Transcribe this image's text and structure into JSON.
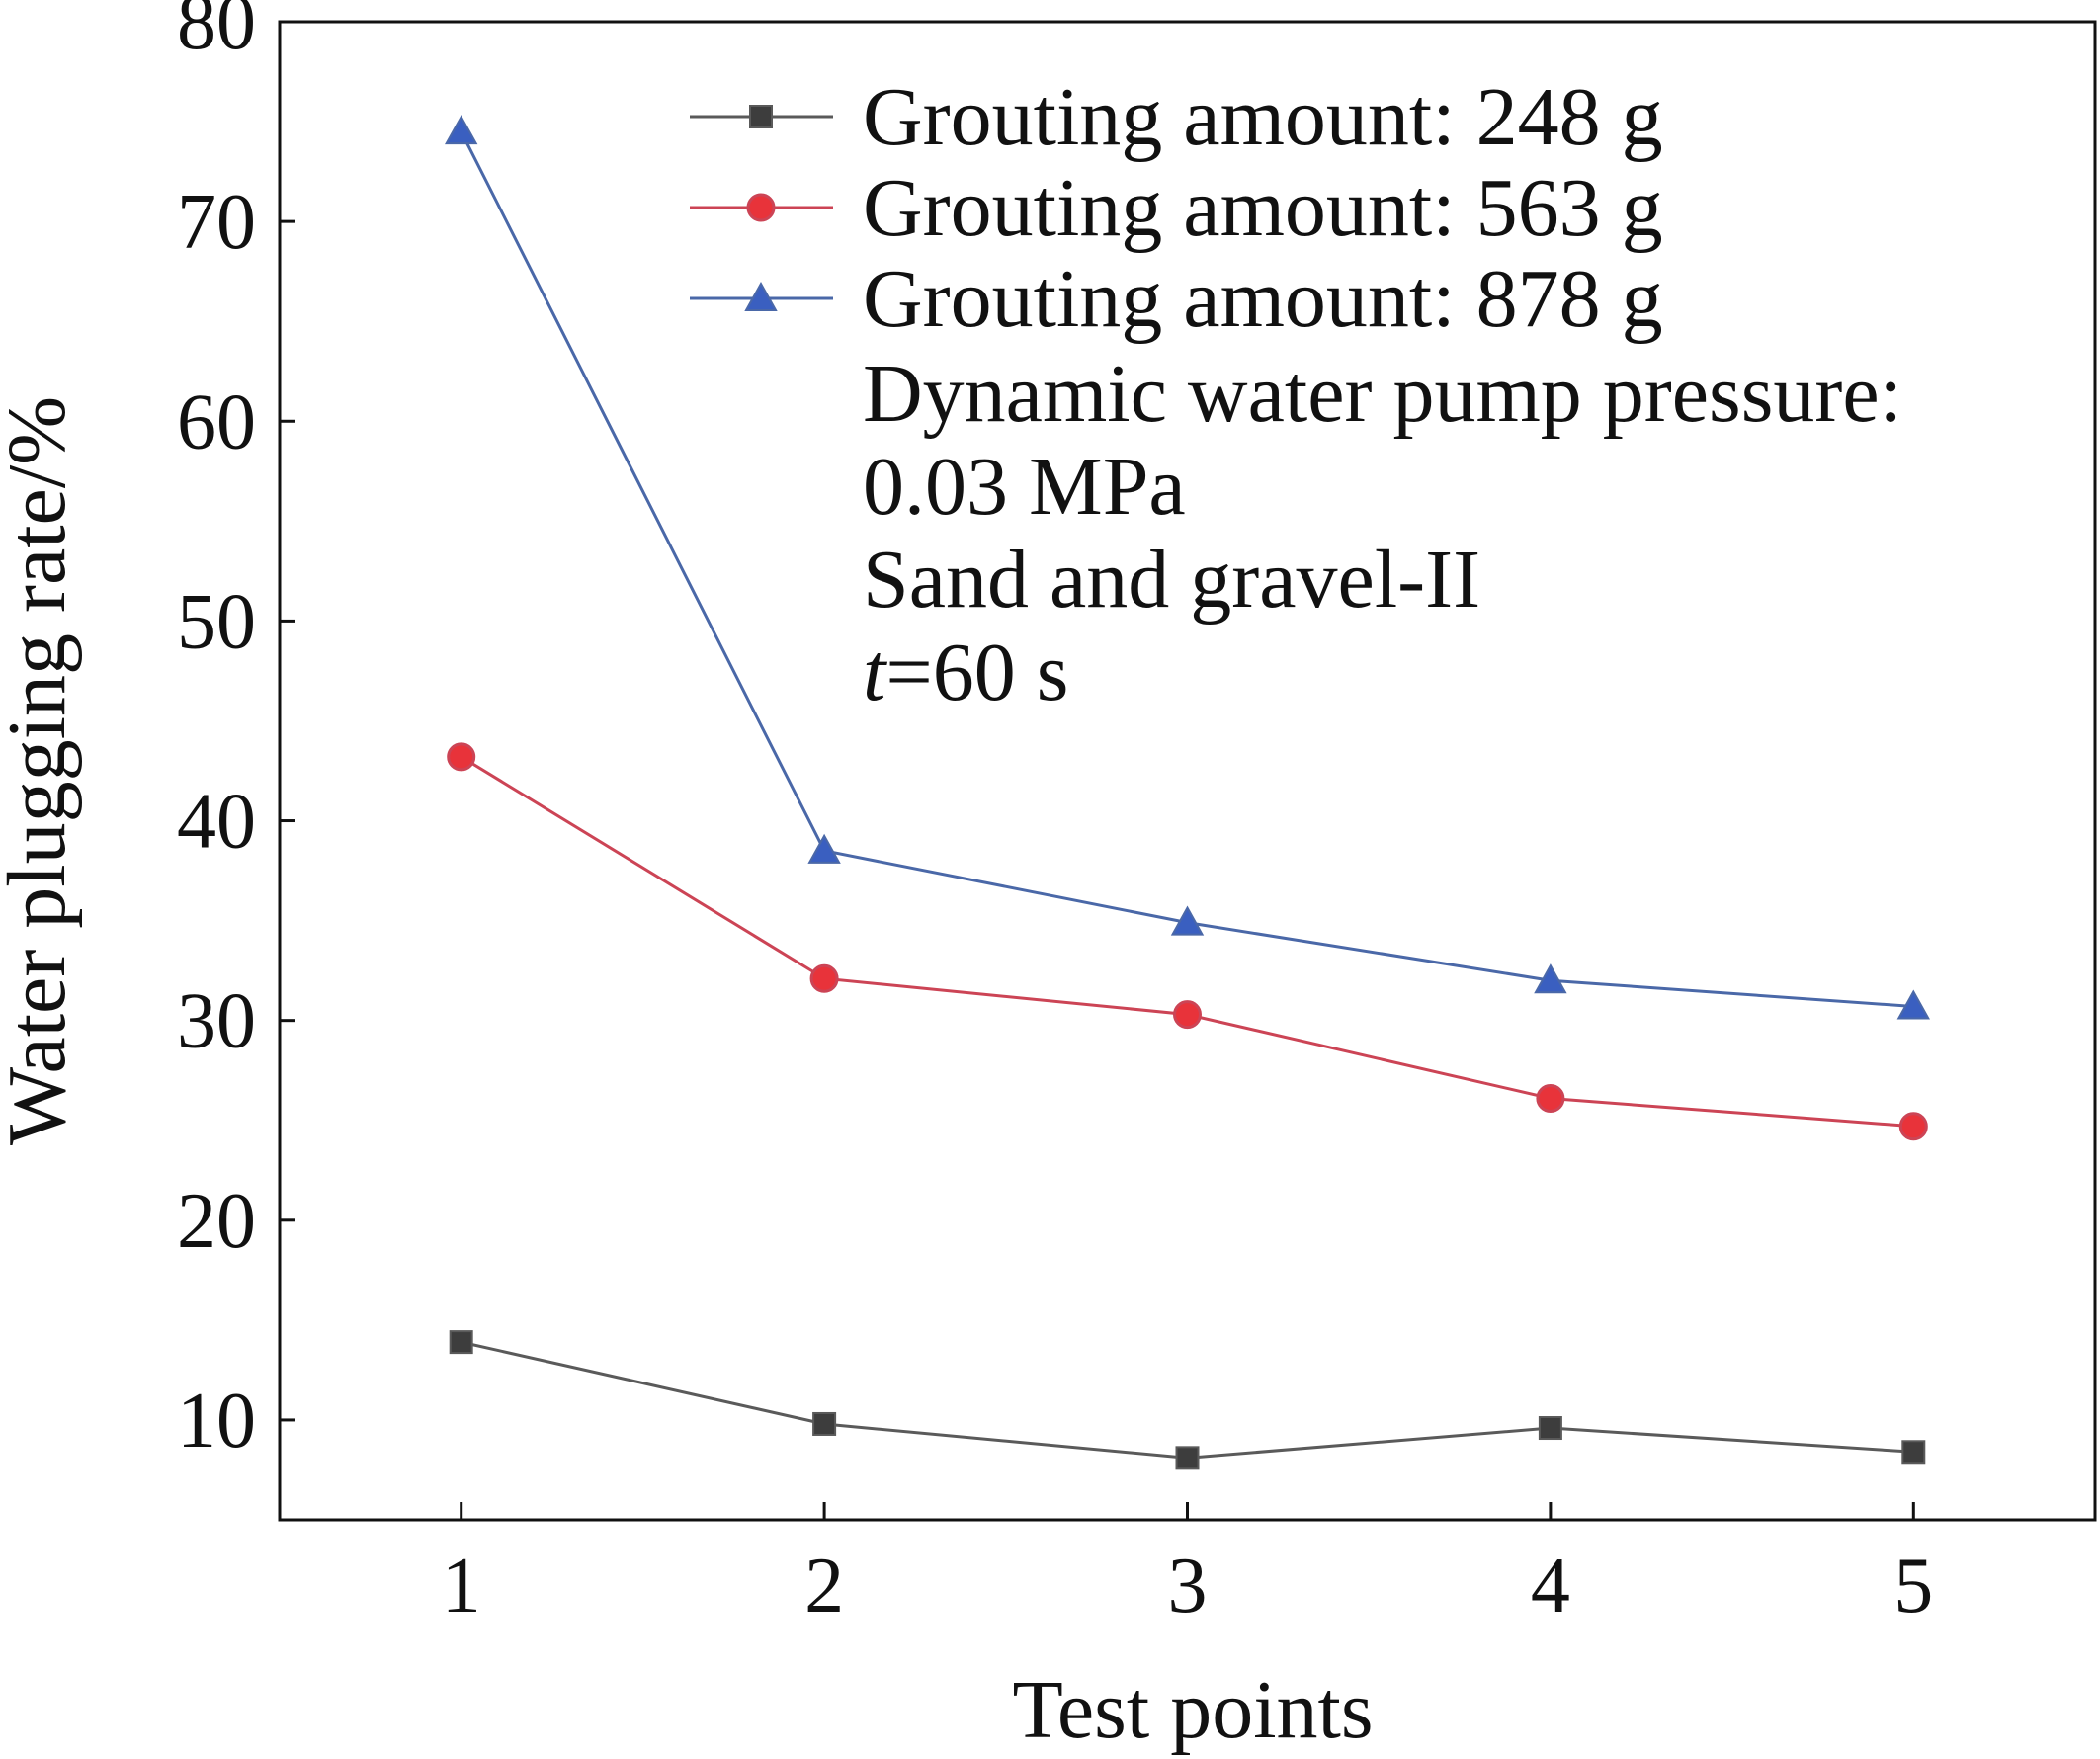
{
  "chart_data": {
    "type": "line",
    "title": "",
    "xlabel": "Test points",
    "ylabel": "Water plugging rate/%",
    "x": [
      1,
      2,
      3,
      4,
      5
    ],
    "xticks": [
      "1",
      "2",
      "3",
      "4",
      "5"
    ],
    "xlim": [
      0.5,
      5.5
    ],
    "ylim": [
      5,
      80
    ],
    "yticks": [
      "10",
      "20",
      "30",
      "40",
      "50",
      "60",
      "70",
      "80"
    ],
    "grid": false,
    "legend_position": "top-right",
    "series": [
      {
        "name": "Grouting amount: 248 g",
        "marker": "square",
        "color": "#5a5a5a",
        "marker_color": "#3d3d3d",
        "values": [
          13.9,
          9.8,
          8.1,
          9.6,
          8.4
        ]
      },
      {
        "name": "Grouting amount: 563 g",
        "marker": "circle",
        "color": "#cc4455",
        "marker_color": "#e8333a",
        "values": [
          43.2,
          32.1,
          30.3,
          26.1,
          24.7
        ]
      },
      {
        "name": "Grouting amount: 878 g",
        "marker": "triangle",
        "color": "#4a68a8",
        "marker_color": "#3a5fc0",
        "values": [
          74.5,
          38.5,
          34.9,
          32.0,
          30.7
        ]
      }
    ],
    "annotations": [
      "Dynamic water pump pressure:",
      "0.03 MPa",
      "Sand and gravel-II"
    ],
    "time_label": {
      "var": "t",
      "rest": "=60 s"
    }
  }
}
